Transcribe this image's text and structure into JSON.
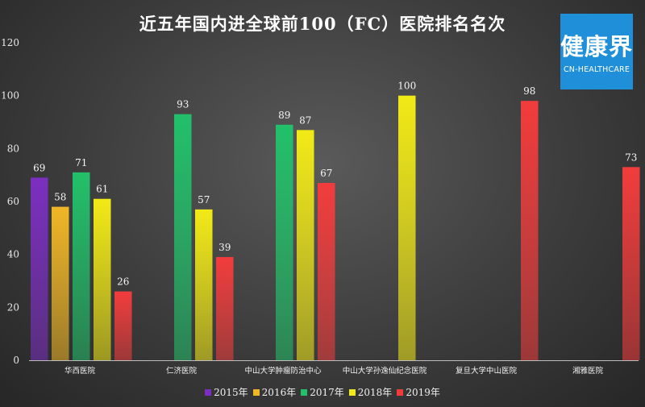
{
  "chart_data": {
    "type": "bar",
    "title": "近五年国内进全球前100（FC）医院排名名次",
    "categories": [
      "华西医院",
      "仁济医院",
      "中山大学肿瘤防治中心",
      "中山大学孙逸仙纪念医院",
      "复旦大学中山医院",
      "湘雅医院"
    ],
    "series": [
      {
        "name": "2015年",
        "color": "#7b2fc0",
        "values": [
          69,
          null,
          null,
          null,
          null,
          null
        ]
      },
      {
        "name": "2016年",
        "color": "#f0b626",
        "values": [
          58,
          null,
          null,
          null,
          null,
          null
        ]
      },
      {
        "name": "2017年",
        "color": "#22c06a",
        "values": [
          71,
          93,
          89,
          null,
          null,
          null
        ]
      },
      {
        "name": "2018年",
        "color": "#f2ea16",
        "values": [
          61,
          57,
          87,
          100,
          null,
          null
        ]
      },
      {
        "name": "2019年",
        "color": "#f23c3c",
        "values": [
          26,
          39,
          67,
          null,
          98,
          73
        ]
      }
    ],
    "ylim": [
      0,
      120
    ],
    "yticks": [
      0,
      20,
      40,
      60,
      80,
      100,
      120
    ],
    "legend_position": "bottom",
    "grid": false
  },
  "logo": {
    "main": "健康界",
    "sub": "CN-HEALTHCARE"
  }
}
